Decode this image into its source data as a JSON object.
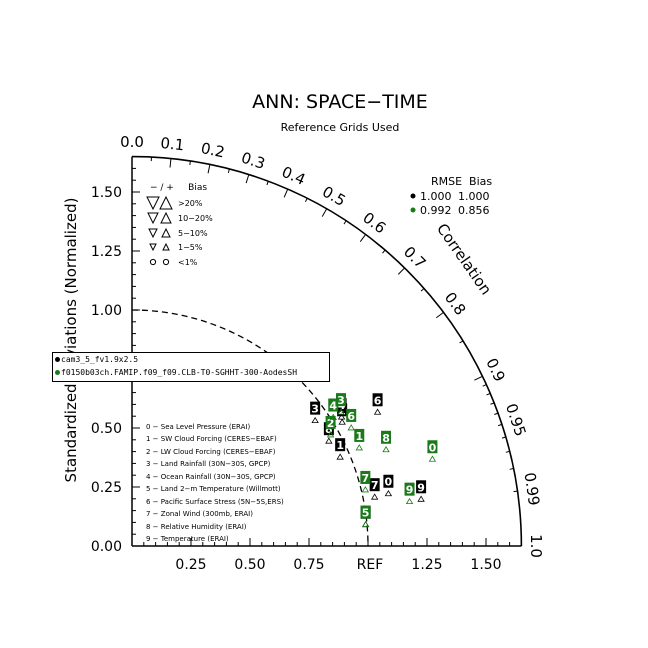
{
  "chart_data": {
    "type": "scatter",
    "title": "ANN: SPACE−TIME",
    "subtitle": "Reference Grids Used",
    "ylabel": "Standardized Deviations (Normalized)",
    "correlation_label": "Correlation",
    "ref_label": "REF",
    "std_range": [
      0,
      1.65
    ],
    "x_ticks": [
      "0.25",
      "0.50",
      "0.75",
      "1.25",
      "1.50"
    ],
    "y_ticks": [
      "0.00",
      "0.25",
      "0.50",
      "0.75",
      "1.00",
      "1.25",
      "1.50"
    ],
    "corr_ticks": [
      "0.0",
      "0.1",
      "0.2",
      "0.3",
      "0.4",
      "0.5",
      "0.6",
      "0.7",
      "0.8",
      "0.9",
      "0.95",
      "0.99",
      "1.0"
    ],
    "bias_legend": {
      "header": "− / +     Bias",
      "rows": [
        ">20%",
        "10−20%",
        "5−10%",
        "1−5%",
        "<1%"
      ]
    },
    "rmse_table": {
      "header": "RMSE  Bias",
      "rows": [
        {
          "rmse": "1.000",
          "bias": "1.000",
          "color": "#000000"
        },
        {
          "rmse": "0.992",
          "bias": "0.856",
          "color": "#1a7a1a"
        }
      ]
    },
    "series": [
      {
        "name": "cam3_5_fv1.9x2.5",
        "color": "#000000",
        "points": [
          {
            "id": "0",
            "std": 1.12,
            "corr": 0.97
          },
          {
            "id": "1",
            "std": 0.98,
            "corr": 0.9
          },
          {
            "id": "2",
            "std": 1.06,
            "corr": 0.84
          },
          {
            "id": "3",
            "std": 0.97,
            "corr": 0.8
          },
          {
            "id": "4",
            "std": 1.07,
            "corr": 0.83
          },
          {
            "id": "5",
            "std": 1.0,
            "corr": 0.99
          },
          {
            "id": "6",
            "std": 1.21,
            "corr": 0.86
          },
          {
            "id": "7",
            "std": 1.06,
            "corr": 0.97
          },
          {
            "id": "8",
            "std": 0.97,
            "corr": 0.86
          },
          {
            "id": "9",
            "std": 1.25,
            "corr": 0.98
          }
        ]
      },
      {
        "name": "f0150b03ch.FAMIP.f09_f09.CLB-T0-SGHHT-300-AodesSH",
        "color": "#1a7a1a",
        "points": [
          {
            "id": "0",
            "std": 1.34,
            "corr": 0.95
          },
          {
            "id": "1",
            "std": 1.07,
            "corr": 0.9
          },
          {
            "id": "2",
            "std": 0.99,
            "corr": 0.85
          },
          {
            "id": "3",
            "std": 1.08,
            "corr": 0.82
          },
          {
            "id": "4",
            "std": 1.04,
            "corr": 0.82
          },
          {
            "id": "5",
            "std": 1.0,
            "corr": 0.99
          },
          {
            "id": "6",
            "std": 1.08,
            "corr": 0.86
          },
          {
            "id": "7",
            "std": 1.03,
            "corr": 0.96
          },
          {
            "id": "8",
            "std": 1.17,
            "corr": 0.92
          },
          {
            "id": "9",
            "std": 1.2,
            "corr": 0.98
          }
        ]
      }
    ],
    "variables": [
      "0 − Sea Level Pressure (ERAI)",
      "1 − SW Cloud Forcing (CERES−EBAF)",
      "2 − LW Cloud Forcing (CERES−EBAF)",
      "3 − Land Rainfall (30N−30S, GPCP)",
      "4 − Ocean Rainfall (30N−30S, GPCP)",
      "5 − Land 2−m Temperature (Willmott)",
      "6 − Pacific Surface Stress (5N−5S,ERS)",
      "7 − Zonal Wind (300mb, ERAI)",
      "8 − Relative Humidity (ERAI)",
      "9 − Temperature (ERAI)"
    ]
  }
}
